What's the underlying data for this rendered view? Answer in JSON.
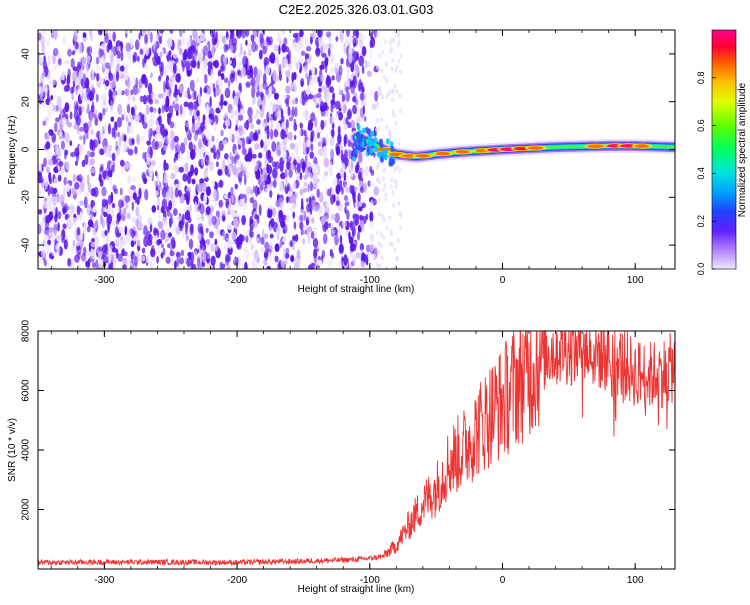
{
  "figure": {
    "title": "C2E2.2025.326.03.01.G03"
  },
  "colorbar": {
    "label": "Normalized spectral amplitude",
    "ticks": [
      "0.0",
      "0.2",
      "0.4",
      "0.6",
      "0.8"
    ],
    "tick_values": [
      0.0,
      0.2,
      0.4,
      0.6,
      0.8
    ],
    "range": [
      0,
      1
    ]
  },
  "chart_data": [
    {
      "type": "heatmap",
      "title": "",
      "xlabel": "Height of straight line (km)",
      "ylabel": "Frequency (Hz)",
      "xlim": [
        -350,
        130
      ],
      "ylim": [
        -50,
        50
      ],
      "xticks": [
        -300,
        -200,
        -100,
        0,
        100
      ],
      "xtick_labels": [
        "-300",
        "-200",
        "-100",
        "0",
        "100"
      ],
      "yticks": [
        -40,
        -20,
        0,
        20,
        40
      ],
      "ytick_labels": [
        "-40",
        "-20",
        "0",
        "20",
        "40"
      ],
      "description_regions": {
        "noise_region_x": [
          -350,
          -95
        ],
        "signal_track": [
          {
            "x": -110,
            "y": 5
          },
          {
            "x": -100,
            "y": 3
          },
          {
            "x": -90,
            "y": 0
          },
          {
            "x": -80,
            "y": -2
          },
          {
            "x": -65,
            "y": -3
          },
          {
            "x": -50,
            "y": -2
          },
          {
            "x": -30,
            "y": -1
          },
          {
            "x": 0,
            "y": 0
          },
          {
            "x": 40,
            "y": 1
          },
          {
            "x": 80,
            "y": 1.5
          },
          {
            "x": 100,
            "y": 1.5
          },
          {
            "x": 130,
            "y": 1
          }
        ]
      }
    },
    {
      "type": "line",
      "title": "",
      "xlabel": "Height of straight line (km)",
      "ylabel": "SNR (10 * v/v)",
      "xlim": [
        -350,
        130
      ],
      "ylim": [
        0,
        8000
      ],
      "xticks": [
        -300,
        -200,
        -100,
        0,
        100
      ],
      "xtick_labels": [
        "-300",
        "-200",
        "-100",
        "0",
        "100"
      ],
      "yticks": [
        2000,
        4000,
        6000,
        8000
      ],
      "ytick_labels": [
        "2000",
        "4000",
        "6000",
        "8000"
      ],
      "series": [
        {
          "color": "#ee3333",
          "x": [
            -350,
            -300,
            -250,
            -200,
            -150,
            -110,
            -100,
            -90,
            -80,
            -70,
            -60,
            -50,
            -40,
            -30,
            -20,
            -10,
            0,
            10,
            20,
            30,
            40,
            50,
            60,
            70,
            80,
            90,
            100,
            110,
            120,
            130
          ],
          "y": [
            220,
            230,
            230,
            220,
            260,
            320,
            360,
            420,
            800,
            1500,
            2200,
            2700,
            3600,
            4000,
            4600,
            5200,
            5600,
            6200,
            6700,
            7200,
            7400,
            7500,
            7400,
            7300,
            7200,
            6900,
            6600,
            6500,
            6600,
            6800
          ]
        }
      ]
    }
  ]
}
